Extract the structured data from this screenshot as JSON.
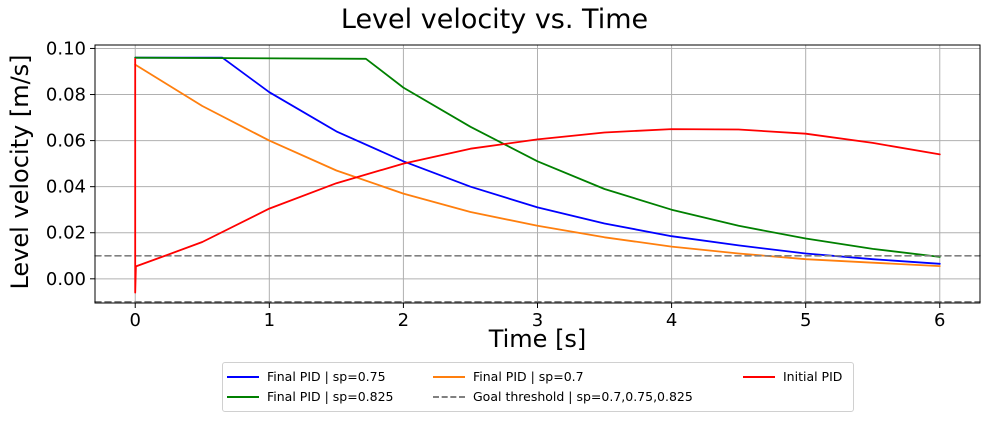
{
  "chart_data": {
    "type": "line",
    "title": "Level velocity vs. Time",
    "xlabel": "Time [s]",
    "ylabel": "Level velocity [m/s]",
    "xlim": [
      -0.3,
      6.3
    ],
    "ylim": [
      -0.0105,
      0.1015
    ],
    "xticks": [
      0,
      1,
      2,
      3,
      4,
      5,
      6
    ],
    "xtick_labels": [
      "0",
      "1",
      "2",
      "3",
      "4",
      "5",
      "6"
    ],
    "yticks": [
      0.0,
      0.02,
      0.04,
      0.06,
      0.08,
      0.1
    ],
    "ytick_labels": [
      "0.00",
      "0.02",
      "0.04",
      "0.06",
      "0.08",
      "0.10"
    ],
    "grid": true,
    "legend_position": "below",
    "series": [
      {
        "name": "Final PID | sp=0.75",
        "color": "#0000ff",
        "style": "solid",
        "x": [
          0,
          0.65,
          1.0,
          1.5,
          2.0,
          2.5,
          3.0,
          3.5,
          4.0,
          4.5,
          5.0,
          5.5,
          6.0
        ],
        "y": [
          0.096,
          0.096,
          0.081,
          0.064,
          0.051,
          0.04,
          0.031,
          0.024,
          0.0185,
          0.0145,
          0.011,
          0.0085,
          0.0065
        ]
      },
      {
        "name": "Final PID | sp=0.825",
        "color": "#008000",
        "style": "solid",
        "x": [
          0,
          1.72,
          2.0,
          2.5,
          3.0,
          3.5,
          4.0,
          4.5,
          5.0,
          5.5,
          6.0
        ],
        "y": [
          0.096,
          0.0955,
          0.083,
          0.066,
          0.051,
          0.039,
          0.03,
          0.023,
          0.0175,
          0.013,
          0.0095
        ]
      },
      {
        "name": "Final PID | sp=0.7",
        "color": "#ff7f0e",
        "style": "solid",
        "x": [
          0,
          0.5,
          1.0,
          1.5,
          2.0,
          2.5,
          3.0,
          3.5,
          4.0,
          4.5,
          5.0,
          5.5,
          6.0
        ],
        "y": [
          0.093,
          0.075,
          0.06,
          0.047,
          0.037,
          0.029,
          0.023,
          0.018,
          0.014,
          0.011,
          0.0085,
          0.007,
          0.0055
        ]
      },
      {
        "name": "Goal threshold | sp=0.7,0.75,0.825",
        "color": "#808080",
        "style": "dashed",
        "x": [
          -0.3,
          6.3
        ],
        "y": [
          0.01,
          0.01
        ]
      },
      {
        "name": "",
        "color": "#808080",
        "style": "dashed",
        "x": [
          -0.3,
          6.3
        ],
        "y": [
          -0.01,
          -0.01
        ]
      },
      {
        "name": "Initial PID",
        "color": "#ff0000",
        "style": "solid",
        "x": [
          0,
          0.0,
          0.005,
          0.01,
          0.2,
          0.5,
          1.0,
          1.5,
          2.0,
          2.5,
          3.0,
          3.5,
          4.0,
          4.5,
          5.0,
          5.5,
          6.0
        ],
        "y": [
          0.0955,
          -0.006,
          0.0055,
          0.0055,
          0.0095,
          0.016,
          0.0305,
          0.0415,
          0.05,
          0.0565,
          0.0605,
          0.0635,
          0.065,
          0.0648,
          0.063,
          0.059,
          0.054
        ]
      }
    ]
  },
  "legend": {
    "items": [
      {
        "label": "Final PID | sp=0.75",
        "color": "#0000ff",
        "style": "solid"
      },
      {
        "label": "Final PID | sp=0.825",
        "color": "#008000",
        "style": "solid"
      },
      {
        "label": "Final PID | sp=0.7",
        "color": "#ff7f0e",
        "style": "solid"
      },
      {
        "label": "Goal threshold | sp=0.7,0.75,0.825",
        "color": "#808080",
        "style": "dashed"
      },
      {
        "label": "Initial PID",
        "color": "#ff0000",
        "style": "solid"
      }
    ]
  }
}
